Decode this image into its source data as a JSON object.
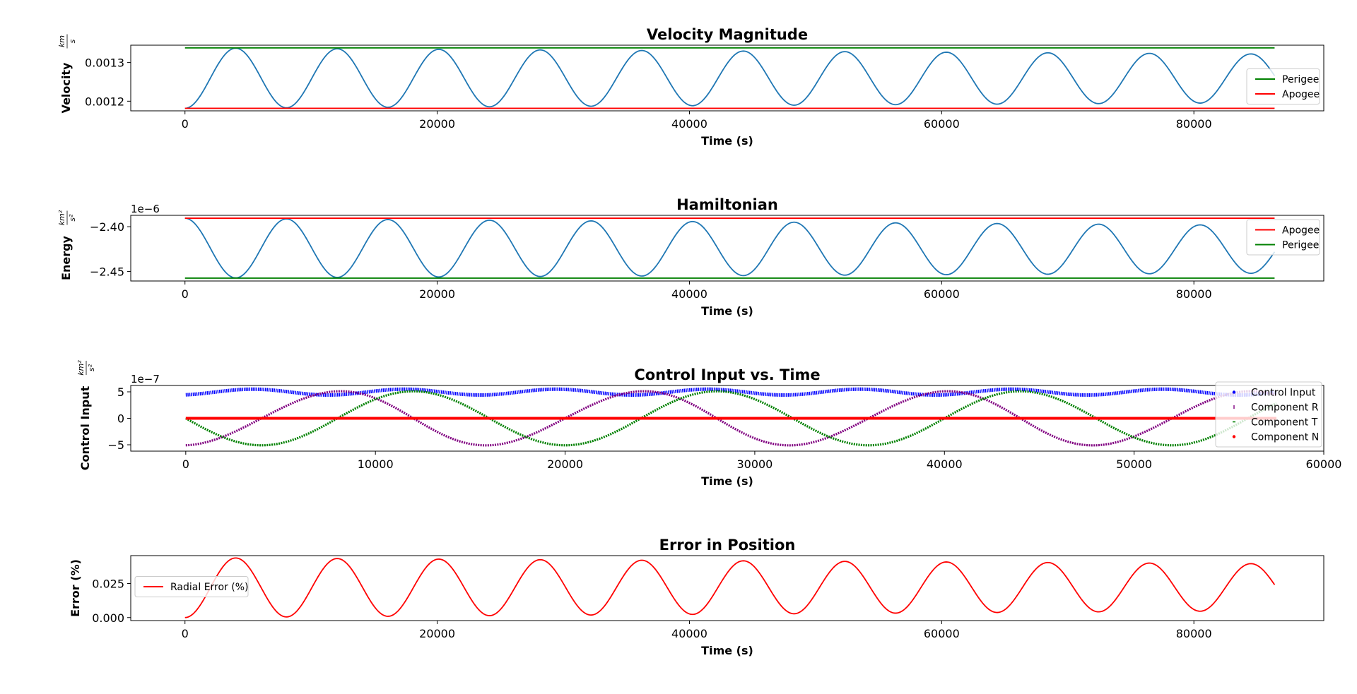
{
  "chart_data": [
    {
      "type": "line",
      "title": "Velocity Magnitude",
      "xlabel": "Time (s)",
      "ylabel": "Velocity",
      "ylabel_unit": "km/s",
      "xlim": [
        -4300,
        90300
      ],
      "ylim": [
        0.001175,
        0.001345
      ],
      "xticks": [
        0,
        20000,
        40000,
        60000,
        80000
      ],
      "xtick_labels": [
        "0",
        "20000",
        "40000",
        "60000",
        "80000"
      ],
      "yticks": [
        0.0012,
        0.0013
      ],
      "ytick_labels": [
        "0.0012",
        "0.0013"
      ],
      "legend_loc": "center-right",
      "grid": false,
      "series": [
        {
          "name": "",
          "color": "#1f77b4",
          "kind": "oscillation",
          "x_range": [
            0,
            86400
          ],
          "period": 8050,
          "phase": "min",
          "lo_start": 0.0011815,
          "lo_end": 0.001196,
          "hi_start": 0.001338,
          "hi_end": 0.001322
        },
        {
          "name": "Perigee",
          "color": "#008000",
          "kind": "hline",
          "x_range": [
            0,
            86400
          ],
          "value": 0.001338
        },
        {
          "name": "Apogee",
          "color": "#ff0000",
          "kind": "hline",
          "x_range": [
            0,
            86400
          ],
          "value": 0.0011815
        }
      ],
      "legend": [
        {
          "label": "Perigee",
          "color": "#008000",
          "marker": "line"
        },
        {
          "label": "Apogee",
          "color": "#ff0000",
          "marker": "line"
        }
      ]
    },
    {
      "type": "line",
      "title": "Hamiltonian",
      "xlabel": "Time (s)",
      "ylabel": "Energy",
      "ylabel_unit": "km²/s²",
      "offset_text": "1e−6",
      "xlim": [
        -4300,
        90300
      ],
      "ylim": [
        -2.4607,
        -2.3873
      ],
      "xticks": [
        0,
        20000,
        40000,
        60000,
        80000
      ],
      "xtick_labels": [
        "0",
        "20000",
        "40000",
        "60000",
        "80000"
      ],
      "yticks": [
        -2.45,
        -2.4
      ],
      "ytick_labels": [
        "−2.45",
        "−2.40"
      ],
      "legend_loc": "upper-right",
      "grid": false,
      "series": [
        {
          "name": "",
          "color": "#1f77b4",
          "kind": "oscillation",
          "x_range": [
            0,
            86400
          ],
          "period": 8050,
          "phase": "max",
          "lo_start": -2.4575,
          "lo_end": -2.452,
          "hi_start": -2.3905,
          "hi_end": -2.3985
        },
        {
          "name": "Apogee",
          "color": "#ff0000",
          "kind": "hline",
          "x_range": [
            0,
            86400
          ],
          "value": -2.3905
        },
        {
          "name": "Perigee",
          "color": "#008000",
          "kind": "hline",
          "x_range": [
            0,
            86400
          ],
          "value": -2.4575
        }
      ],
      "legend": [
        {
          "label": "Apogee",
          "color": "#ff0000",
          "marker": "line"
        },
        {
          "label": "Perigee",
          "color": "#008000",
          "marker": "line"
        }
      ]
    },
    {
      "type": "scatter",
      "title": "Control Input vs. Time",
      "xlabel": "Time (s)",
      "ylabel": "Control Input",
      "ylabel_unit": "km²/s²",
      "offset_text": "1e−7",
      "xlim": [
        -2900,
        60000
      ],
      "ylim": [
        -6.2,
        6.2
      ],
      "xticks": [
        0,
        10000,
        20000,
        30000,
        40000,
        50000,
        60000
      ],
      "xtick_labels": [
        "0",
        "10000",
        "20000",
        "30000",
        "40000",
        "50000",
        "60000"
      ],
      "yticks": [
        -5,
        0,
        5
      ],
      "ytick_labels": [
        "−5",
        "0",
        "5"
      ],
      "legend_loc": "right",
      "grid": false,
      "series": [
        {
          "name": "Control Input",
          "color": "#0000ff",
          "kind": "magnitude",
          "x_range": [
            0,
            57500
          ]
        },
        {
          "name": "Component R",
          "color": "#800080",
          "kind": "component",
          "x_range": [
            0,
            57500
          ],
          "amplitude": 5.1,
          "period": 16000,
          "offset": -0.37
        },
        {
          "name": "Component T",
          "color": "#008000",
          "kind": "component",
          "x_range": [
            0,
            57500
          ],
          "amplitude": 5.1,
          "period": 16000,
          "offset": 0.0
        },
        {
          "name": "Component N",
          "color": "#ff0000",
          "kind": "hline",
          "x_range": [
            0,
            57500
          ],
          "value": 0
        }
      ],
      "legend": [
        {
          "label": "Control Input",
          "color": "#0000ff",
          "marker": "dot"
        },
        {
          "label": "Component R",
          "color": "#800080",
          "marker": "tick"
        },
        {
          "label": "Component T",
          "color": "#008000",
          "marker": "dash"
        },
        {
          "label": "Component N",
          "color": "#ff0000",
          "marker": "dot"
        }
      ]
    },
    {
      "type": "line",
      "title": "Error in Position",
      "xlabel": "Time (s)",
      "ylabel": "Error (%)",
      "xlim": [
        -4300,
        90300
      ],
      "ylim": [
        -0.0022,
        0.0455
      ],
      "xticks": [
        0,
        20000,
        40000,
        60000,
        80000
      ],
      "xtick_labels": [
        "0",
        "20000",
        "40000",
        "60000",
        "80000"
      ],
      "yticks": [
        0.0,
        0.025
      ],
      "ytick_labels": [
        "0.000",
        "0.025"
      ],
      "legend_loc": "center-left",
      "grid": false,
      "series": [
        {
          "name": "Radial Error (%)",
          "color": "#ff0000",
          "kind": "oscillation",
          "x_range": [
            0,
            86400
          ],
          "period": 8050,
          "phase": "min",
          "lo_start": 0.0,
          "lo_end": 0.005,
          "hi_start": 0.044,
          "hi_end": 0.0395
        }
      ],
      "legend": [
        {
          "label": "Radial Error (%)",
          "color": "#ff0000",
          "marker": "line"
        }
      ]
    }
  ]
}
